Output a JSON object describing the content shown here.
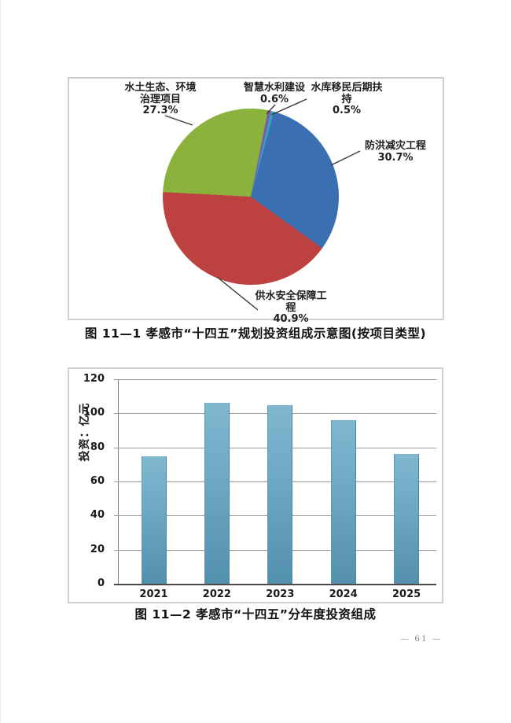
{
  "page": {
    "number_label": "— 61 —"
  },
  "figure1": {
    "caption": "图 11—1  孝感市“十四五”规划投资组成示意图(按项目类型)",
    "labels": [
      {
        "l1": "水土生态、环境",
        "l2": "治理项目",
        "pct": "27.3%"
      },
      {
        "l1": "智慧水利建设",
        "pct": "0.6%"
      },
      {
        "l1": "水库移民后期扶",
        "l2": "持",
        "pct": "0.5%"
      },
      {
        "l1": "防洪减灾工程",
        "pct": "30.7%"
      },
      {
        "l1": "供水安全保障工",
        "l2": "程",
        "pct": "40.9%"
      }
    ]
  },
  "figure2": {
    "caption": "图 11—2  孝感市“十四五”分年度投资组成"
  },
  "chart_data": [
    {
      "type": "pie",
      "title": "孝感市“十四五”规划投资组成示意图(按项目类型)",
      "unit": "%",
      "start_angle_deg": 273,
      "slices": [
        {
          "label": "水土生态、环境治理项目",
          "value": 27.3,
          "color": "#8CB23E"
        },
        {
          "label": "智慧水利建设",
          "value": 0.6,
          "color": "#7A5DA8"
        },
        {
          "label": "水库移民后期扶持",
          "value": 0.5,
          "color": "#36A2C9"
        },
        {
          "label": "防洪减灾工程",
          "value": 30.7,
          "color": "#3A70B2"
        },
        {
          "label": "供水安全保障工程",
          "value": 40.9,
          "color": "#BE4141"
        }
      ]
    },
    {
      "type": "bar",
      "title": "孝感市“十四五”分年度投资组成",
      "categories": [
        "2021",
        "2022",
        "2023",
        "2024",
        "2025"
      ],
      "values": [
        75,
        106,
        105,
        96,
        76
      ],
      "ylabel": "投资：亿元",
      "ylim": [
        0,
        120
      ],
      "yticks": [
        0,
        20,
        40,
        60,
        80,
        100,
        120
      ],
      "grid": true,
      "legend": "none",
      "bar_color_top": "#80B7D0",
      "bar_color_bottom": "#5390AD"
    }
  ]
}
